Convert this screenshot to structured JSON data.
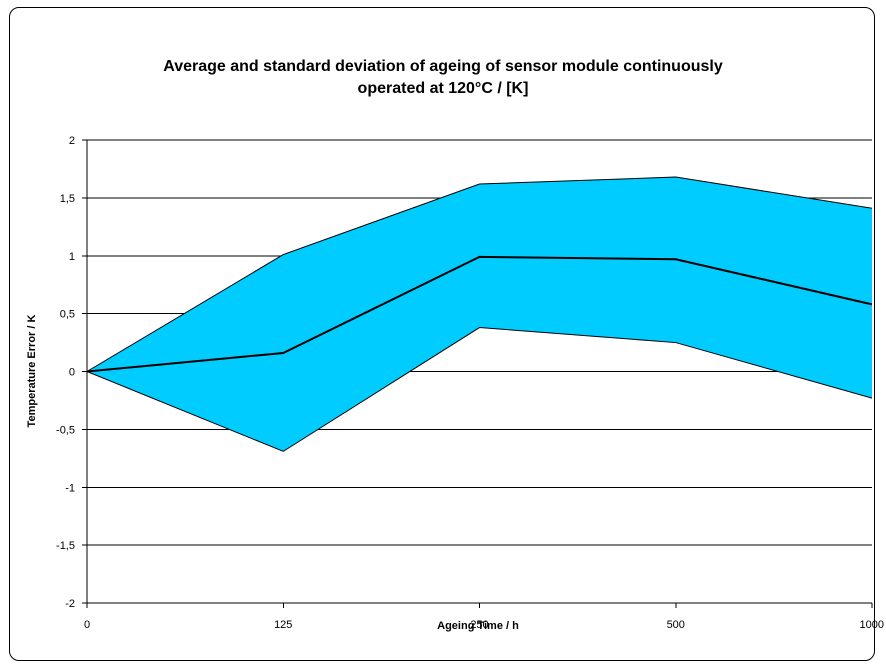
{
  "chart_data": {
    "type": "area",
    "title_lines": [
      "Average and standard deviation of ageing of sensor module continuously",
      "operated at 120°C / [K]"
    ],
    "xlabel": "Ageing Time / h",
    "ylabel": "Temperature Error / K",
    "categories": [
      "0",
      "125",
      "250",
      "500",
      "1000"
    ],
    "ylim": [
      -2,
      2
    ],
    "yticks": [
      "-2",
      "-1,5",
      "-1",
      "-0,5",
      "0",
      "0,5",
      "1",
      "1,5",
      "2"
    ],
    "yticks_values": [
      -2,
      -1.5,
      -1,
      -0.5,
      0,
      0.5,
      1,
      1.5,
      2
    ],
    "grid": true,
    "series": [
      {
        "role": "upper",
        "values": [
          0,
          1.01,
          1.62,
          1.68,
          1.41
        ]
      },
      {
        "role": "average",
        "values": [
          0,
          0.16,
          0.99,
          0.97,
          0.58
        ]
      },
      {
        "role": "lower",
        "values": [
          0,
          -0.69,
          0.38,
          0.25,
          -0.23
        ]
      }
    ],
    "colors": {
      "band_fill": "#00CCFF",
      "band_edge": "#000000",
      "average_line": "#000000",
      "grid": "#000000"
    }
  }
}
